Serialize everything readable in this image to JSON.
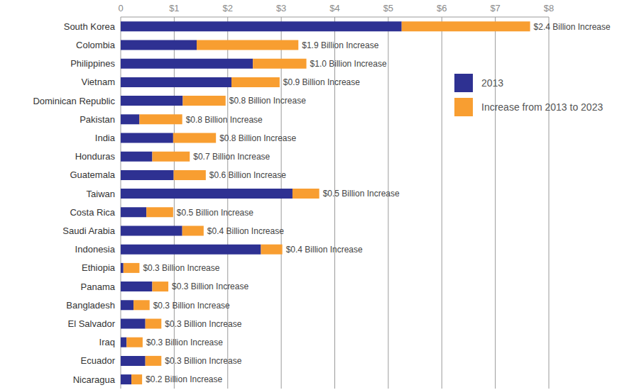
{
  "chart_data": {
    "type": "bar",
    "orientation": "horizontal",
    "stacked": true,
    "grid": true,
    "legend": "right",
    "data_labels": true,
    "categories": [
      "South Korea",
      "Colombia",
      "Philippines",
      "Vietnam",
      "Dominican Republic",
      "Pakistan",
      "India",
      "Honduras",
      "Guatemala",
      "Taiwan",
      "Costa Rica",
      "Saudi Arabia",
      "Indonesia",
      "Ethiopia",
      "Panama",
      "Bangladesh",
      "El Salvador",
      "Iraq",
      "Ecuador",
      "Nicaragua"
    ],
    "series": [
      {
        "name": "2013",
        "color": "#2e3192",
        "values": [
          5.25,
          1.42,
          2.47,
          2.07,
          1.16,
          0.35,
          0.98,
          0.59,
          0.99,
          3.21,
          0.48,
          1.15,
          2.62,
          0.05,
          0.59,
          0.24,
          0.46,
          0.11,
          0.46,
          0.2
        ]
      },
      {
        "name": "Increase from 2013 to 2023",
        "color": "#f89e31",
        "values": [
          2.4,
          1.9,
          1.0,
          0.9,
          0.8,
          0.8,
          0.8,
          0.7,
          0.6,
          0.5,
          0.5,
          0.4,
          0.4,
          0.3,
          0.3,
          0.3,
          0.3,
          0.3,
          0.3,
          0.2
        ],
        "value_labels": [
          "$2.4 Billion Increase",
          "$1.9 Billion Increase",
          "$1.0 Billion Increase",
          "$0.9 Billion Increase",
          "$0.8 Billion Increase",
          "$0.8 Billion Increase",
          "$0.8 Billion Increase",
          "$0.7 Billion Increase",
          "$0.6 Billion Increase",
          "$0.5 Billion Increase",
          "$0.5 Billion Increase",
          "$0.4 Billion Increase",
          "$0.4 Billion Increase",
          "$0.3 Billion Increase",
          "$0.3 Billion Increase",
          "$0.3 Billion Increase",
          "$0.3 Billion Increase",
          "$0.3 Billion Increase",
          "$0.3 Billion Increase",
          "$0.2 Billion Increase"
        ]
      }
    ],
    "xlim": [
      0,
      8
    ],
    "xticks": [
      0,
      {
        "value": 1,
        "label": "$1"
      },
      {
        "value": 2,
        "label": "$2"
      },
      {
        "value": 3,
        "label": "$3"
      },
      {
        "value": 4,
        "label": "$4"
      },
      {
        "value": 5,
        "label": "$5"
      },
      {
        "value": 6,
        "label": "$6"
      },
      {
        "value": 7,
        "label": "$7"
      },
      {
        "value": 8,
        "label": "$8"
      }
    ]
  }
}
